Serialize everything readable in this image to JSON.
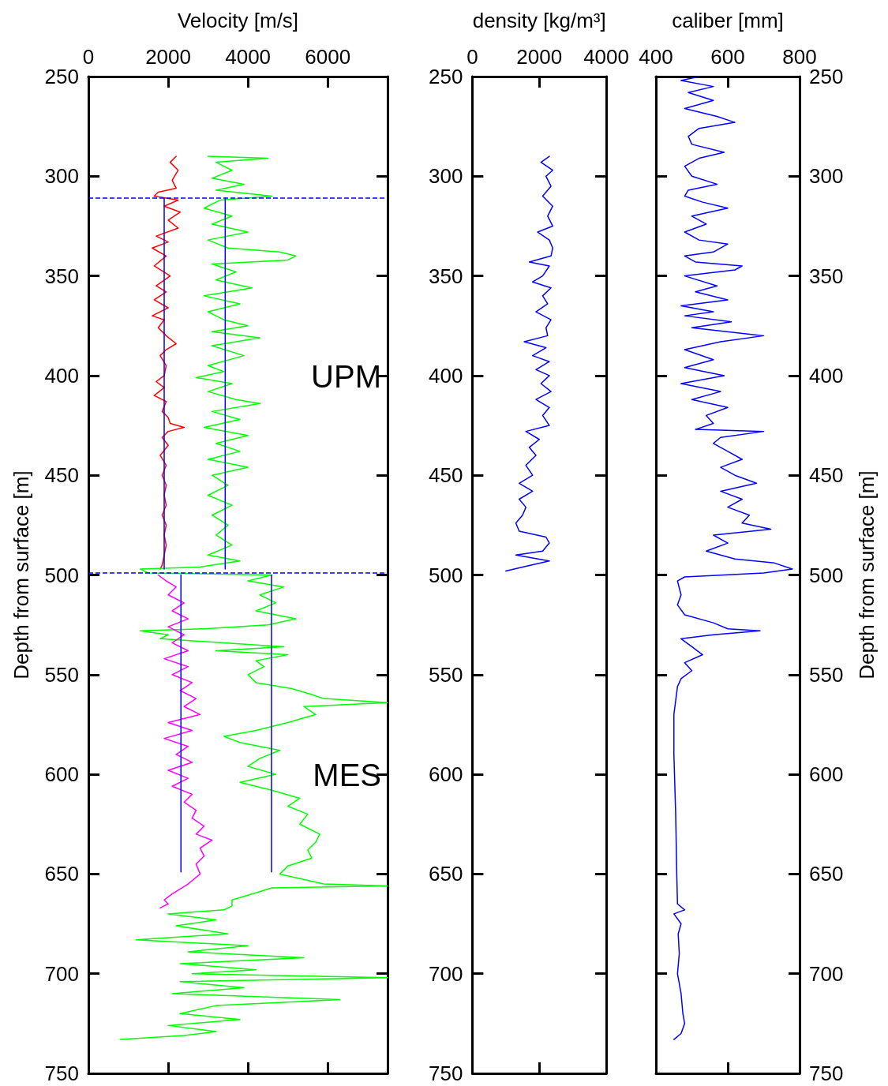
{
  "chart_data": [
    {
      "type": "line",
      "xlabel": "Velocity [m/s]",
      "ylabel": "Depth from surface [m]",
      "xlim": [
        0,
        7500
      ],
      "xticks": [
        0,
        2000,
        4000,
        6000
      ],
      "ylim": [
        750,
        250
      ],
      "yticks": [
        250,
        300,
        350,
        400,
        450,
        500,
        550,
        600,
        650,
        700,
        750
      ],
      "marker": "none",
      "line_style": "solid",
      "series": [
        {
          "color": "#ff0000",
          "x": [
            2200,
            2050,
            2250,
            2100,
            2200,
            1750,
            1650,
            2250,
            1900,
            2300,
            2000,
            2250,
            1700,
            2000,
            1600,
            1950,
            1650,
            2050,
            1700,
            1950,
            1650,
            2000,
            1600,
            1900,
            1750,
            1950,
            2200,
            1950,
            1800,
            1950,
            1900,
            1700,
            1900,
            1650,
            1950,
            1850,
            2000,
            2050,
            2400,
            2000,
            1850,
            2000,
            1800,
            1950,
            1850,
            1950,
            1900,
            1950,
            1850,
            1950,
            1900,
            1950,
            1900,
            1850,
            1800
          ],
          "values": [
            290,
            293,
            297,
            302,
            306,
            308,
            310,
            312,
            315,
            318,
            322,
            326,
            330,
            333,
            336,
            340,
            345,
            350,
            355,
            358,
            362,
            366,
            370,
            372,
            376,
            380,
            384,
            387,
            390,
            395,
            400,
            403,
            406,
            410,
            413,
            418,
            421,
            424,
            426,
            428,
            431,
            435,
            440,
            445,
            450,
            455,
            460,
            465,
            470,
            475,
            480,
            485,
            490,
            495,
            497
          ]
        },
        {
          "color": "#00ff00",
          "x": [
            3000,
            4500,
            3200,
            3600,
            3100,
            3900,
            3200,
            4600,
            3300,
            2900,
            3600,
            3100,
            4000,
            3000,
            3500,
            4800,
            5200,
            5000,
            3100,
            3700,
            3200,
            4100,
            2900,
            3800,
            3000,
            3400,
            4000,
            3100,
            4300,
            3100,
            3900,
            3000,
            3400,
            2700,
            3600,
            3000,
            3700,
            4300,
            3100,
            3800,
            2900,
            4000,
            3200,
            3800,
            3000,
            4000,
            3100,
            3500,
            3000,
            3600,
            3100,
            3500,
            3200,
            3600,
            3000,
            3800,
            2800,
            1300,
            1500,
            4600,
            4000,
            4900,
            4300,
            4700,
            4200,
            5200,
            4500,
            2900,
            1300,
            2000,
            1800,
            3400,
            4900,
            3200,
            5000,
            4200,
            4400,
            4000,
            4200,
            5100,
            5600,
            5900,
            7500,
            5400,
            5700,
            5000,
            4200,
            3400,
            3800,
            4800,
            4300,
            4000,
            4700,
            3800,
            4600,
            5300,
            5000,
            5500,
            5300,
            5800,
            5700,
            5500,
            5600,
            5000,
            4800,
            5900,
            7500,
            4600,
            4100,
            3600,
            3600,
            3400,
            2000,
            3200,
            2200,
            3500,
            1200,
            4000,
            2500,
            5400,
            2300,
            4200,
            2600,
            7500,
            2300,
            3900,
            2100,
            6300,
            3200,
            2300,
            3800,
            2000,
            3200,
            2400,
            800
          ],
          "values": [
            290,
            291,
            293,
            297,
            301,
            304,
            307,
            310,
            312,
            316,
            320,
            324,
            328,
            332,
            336,
            338,
            340,
            342,
            344,
            348,
            352,
            356,
            360,
            364,
            368,
            372,
            375,
            378,
            381,
            385,
            390,
            395,
            398,
            401,
            404,
            408,
            412,
            414,
            418,
            422,
            426,
            430,
            434,
            438,
            442,
            446,
            450,
            455,
            460,
            465,
            470,
            475,
            480,
            485,
            490,
            493,
            496,
            497,
            499,
            500,
            503,
            506,
            510,
            514,
            518,
            522,
            525,
            527,
            528,
            530,
            532,
            534,
            536,
            538,
            540,
            543,
            546,
            550,
            554,
            557,
            560,
            562,
            564,
            566,
            570,
            574,
            578,
            581,
            584,
            588,
            592,
            596,
            600,
            604,
            608,
            612,
            616,
            620,
            625,
            630,
            634,
            638,
            642,
            646,
            650,
            655,
            656,
            657,
            660,
            663,
            666,
            668,
            670,
            673,
            676,
            680,
            683,
            686,
            689,
            692,
            695,
            698,
            700,
            702,
            704,
            707,
            710,
            713,
            716,
            720,
            723,
            726,
            729,
            731,
            733
          ]
        },
        {
          "color": "#ff00ff",
          "x": [
            1750,
            1950,
            2200,
            2000,
            2400,
            2100,
            2500,
            2000,
            2400,
            2100,
            2500,
            1900,
            2500,
            2100,
            2600,
            2300,
            2700,
            2400,
            2800,
            2000,
            2600,
            1900,
            2500,
            2200,
            2600,
            2000,
            2500,
            2100,
            2600,
            2400,
            2700,
            2600,
            2900,
            2700,
            3100,
            2800,
            2900,
            2700,
            2800,
            2500,
            2100,
            1900,
            2000,
            1800
          ],
          "values": [
            500,
            503,
            506,
            510,
            514,
            518,
            522,
            526,
            530,
            534,
            538,
            542,
            546,
            550,
            554,
            558,
            562,
            566,
            570,
            574,
            578,
            582,
            586,
            590,
            594,
            598,
            602,
            606,
            610,
            614,
            618,
            622,
            626,
            630,
            633,
            637,
            641,
            645,
            650,
            655,
            660,
            663,
            665,
            667
          ]
        },
        {
          "color": "#0000ff",
          "x": [
            1900,
            1900
          ],
          "values": [
            311,
            497
          ]
        },
        {
          "color": "#0000ff",
          "x": [
            3430,
            3430
          ],
          "values": [
            311,
            497
          ]
        },
        {
          "color": "#0000ff",
          "x": [
            2320,
            2320
          ],
          "values": [
            500,
            649
          ]
        },
        {
          "color": "#0000ff",
          "x": [
            4590,
            4590
          ],
          "values": [
            500,
            649
          ]
        }
      ],
      "ref_lines": [
        {
          "axis": "y",
          "value": 311,
          "color": "#0000ff",
          "line_style": "dashed"
        },
        {
          "axis": "y",
          "value": 499,
          "color": "#0000ff",
          "line_style": "dashed"
        }
      ],
      "annotations": [
        "UPM",
        "MES"
      ]
    },
    {
      "type": "line",
      "xlabel": "density [kg/m³]",
      "xlim": [
        0,
        4000
      ],
      "xticks": [
        0,
        2000,
        4000
      ],
      "ylim": [
        750,
        250
      ],
      "yticks": [
        250,
        300,
        350,
        400,
        450,
        500,
        550,
        600,
        650,
        700,
        750
      ],
      "marker": "none",
      "line_style": "solid",
      "series": [
        {
          "color": "#0000ff",
          "x": [
            2300,
            2050,
            2400,
            2200,
            2350,
            2100,
            2400,
            2250,
            2400,
            1950,
            2300,
            2400,
            2350,
            1700,
            2300,
            2100,
            1800,
            2350,
            2100,
            2250,
            1900,
            2350,
            2200,
            2250,
            1550,
            2200,
            1800,
            2300,
            1900,
            2300,
            2050,
            2350,
            1900,
            2300,
            2100,
            2300,
            1600,
            2000,
            1700,
            1900,
            1600,
            1800,
            1400,
            1800,
            1400,
            1600,
            1500,
            1300,
            1400,
            2200,
            2300,
            2100,
            1300,
            2300,
            1500,
            1000
          ],
          "values": [
            290,
            293,
            297,
            300,
            305,
            310,
            315,
            320,
            325,
            328,
            332,
            336,
            340,
            343,
            345,
            350,
            353,
            356,
            360,
            364,
            368,
            372,
            376,
            380,
            383,
            386,
            390,
            393,
            397,
            400,
            404,
            408,
            412,
            416,
            420,
            425,
            428,
            432,
            436,
            440,
            445,
            450,
            454,
            458,
            462,
            466,
            470,
            474,
            478,
            481,
            484,
            488,
            490,
            493,
            496,
            498
          ]
        }
      ]
    },
    {
      "type": "line",
      "xlabel": "caliber [mm]",
      "y2label": "Depth from surface [m]",
      "xlim": [
        400,
        800
      ],
      "xticks": [
        400,
        600,
        800
      ],
      "y2lim": [
        750,
        250
      ],
      "y2ticks": [
        250,
        300,
        350,
        400,
        450,
        500,
        550,
        600,
        650,
        700,
        750
      ],
      "marker": "none",
      "line_style": "solid",
      "series": [
        {
          "color": "#0000ff",
          "axis": "y2",
          "x": [
            520,
            470,
            560,
            490,
            560,
            480,
            570,
            620,
            520,
            490,
            500,
            590,
            520,
            480,
            500,
            570,
            490,
            480,
            530,
            600,
            500,
            540,
            480,
            520,
            600,
            560,
            480,
            510,
            640,
            620,
            480,
            570,
            510,
            600,
            470,
            560,
            480,
            610,
            500,
            700,
            580,
            480,
            560,
            480,
            590,
            470,
            580,
            500,
            600,
            540,
            560,
            510,
            700,
            580,
            560,
            600,
            640,
            580,
            620,
            680,
            580,
            640,
            600,
            660,
            640,
            720,
            560,
            600,
            540,
            620,
            730,
            780,
            700,
            480,
            460,
            470,
            460,
            480,
            560,
            600,
            690,
            560,
            470,
            500,
            530,
            480,
            500,
            470,
            460,
            450,
            450,
            455,
            458,
            460,
            480,
            450,
            470,
            462,
            465,
            460,
            470,
            475,
            480,
            470,
            450
          ],
          "values": [
            250,
            252,
            255,
            258,
            262,
            266,
            270,
            273,
            276,
            280,
            284,
            288,
            291,
            295,
            300,
            304,
            307,
            310,
            313,
            316,
            320,
            324,
            328,
            332,
            334,
            338,
            340,
            343,
            345,
            347,
            350,
            355,
            358,
            362,
            365,
            368,
            370,
            373,
            376,
            380,
            383,
            387,
            392,
            396,
            400,
            404,
            408,
            412,
            416,
            420,
            424,
            427,
            428,
            431,
            434,
            438,
            442,
            446,
            450,
            454,
            458,
            462,
            466,
            470,
            474,
            477,
            480,
            484,
            488,
            492,
            494,
            497,
            499,
            501,
            503,
            510,
            515,
            520,
            524,
            527,
            528,
            530,
            532,
            536,
            540,
            544,
            548,
            552,
            556,
            570,
            590,
            620,
            650,
            665,
            668,
            670,
            675,
            680,
            690,
            700,
            710,
            720,
            725,
            730,
            733
          ]
        }
      ]
    }
  ]
}
